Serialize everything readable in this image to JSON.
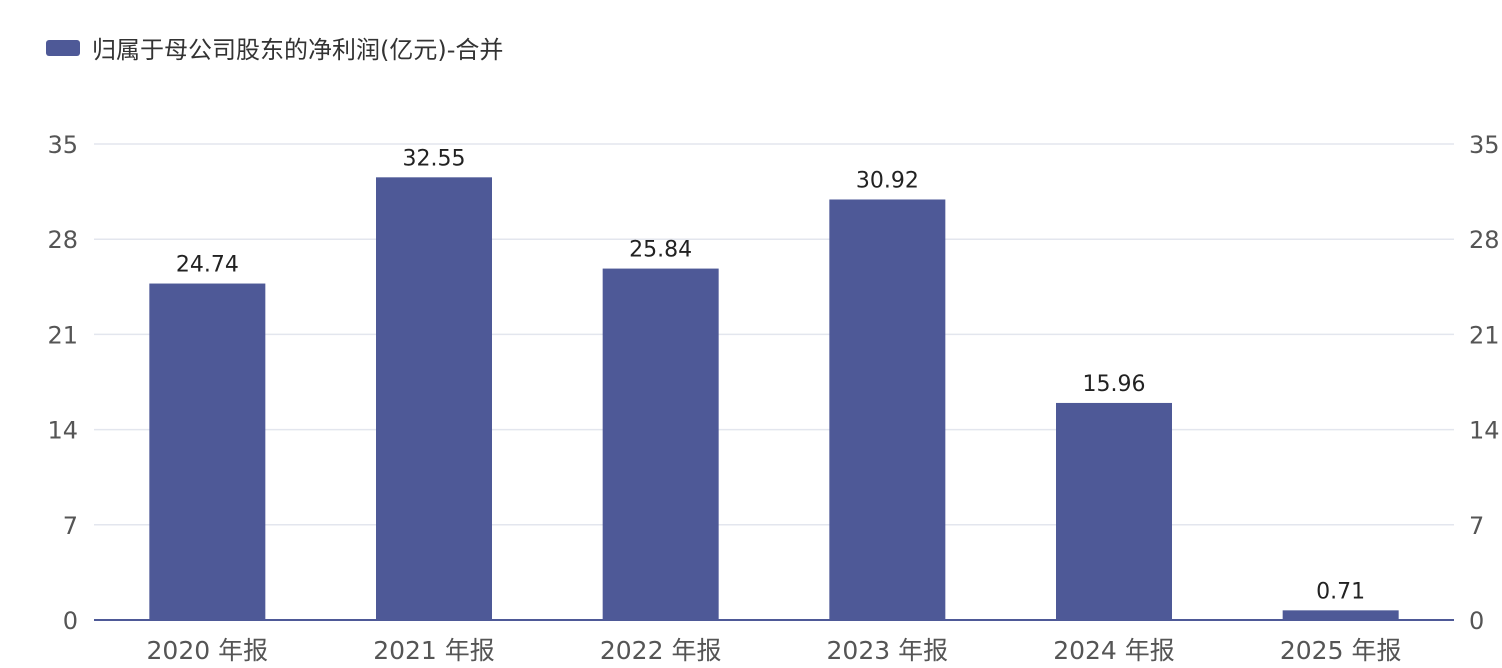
{
  "chart_data": {
    "type": "bar",
    "legend": {
      "label": "归属于母公司股东的净利润(亿元)-合并",
      "position": "top-left"
    },
    "categories": [
      "2020 年报",
      "2021 年报",
      "2022 年报",
      "2023 年报",
      "2024 年报",
      "2025 年报"
    ],
    "series": [
      {
        "name": "归属于母公司股东的净利润(亿元)-合并",
        "values": [
          24.74,
          32.55,
          25.84,
          30.92,
          15.96,
          0.71
        ],
        "labels": [
          "24.74",
          "32.55",
          "25.84",
          "30.92",
          "15.96",
          "0.71"
        ]
      }
    ],
    "ylim": [
      0,
      35
    ],
    "yticks": [
      "0",
      "7",
      "14",
      "21",
      "28",
      "35"
    ],
    "right_yticks": [
      "0",
      "7",
      "14",
      "21",
      "28",
      "35"
    ],
    "grid": true,
    "colors": {
      "bar": "#4e5997",
      "grid": "#e3e6ee",
      "axis": "#4e5997",
      "tick_text": "#555555",
      "label_text": "#222222"
    }
  }
}
